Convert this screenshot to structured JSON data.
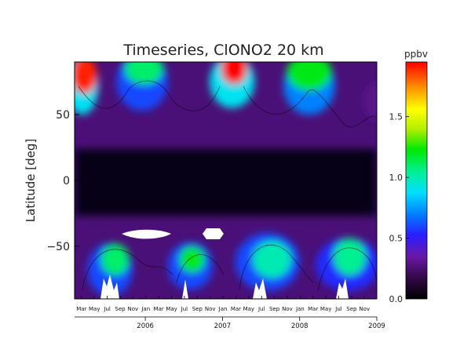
{
  "chart_data": {
    "type": "heatmap",
    "title": "Timeseries, ClONO2 20 km",
    "xlabel": "",
    "ylabel": "Latitude [deg]",
    "x_range": [
      "2005-02",
      "2009-01"
    ],
    "ylim": [
      -90,
      90
    ],
    "y_ticks": [
      {
        "value": 50,
        "label": "50"
      },
      {
        "value": 0,
        "label": "0"
      },
      {
        "value": -50,
        "label": "−50"
      }
    ],
    "month_ticks": [
      {
        "t": 1.08,
        "label": "Mar"
      },
      {
        "t": 3.08,
        "label": "May"
      },
      {
        "t": 5.08,
        "label": "Jul"
      },
      {
        "t": 7.08,
        "label": "Sep"
      },
      {
        "t": 9.08,
        "label": "Nov"
      },
      {
        "t": 11.08,
        "label": "Jan"
      },
      {
        "t": 13.08,
        "label": "Mar"
      },
      {
        "t": 15.08,
        "label": "May"
      },
      {
        "t": 17.08,
        "label": "Jul"
      },
      {
        "t": 19.08,
        "label": "Sep"
      },
      {
        "t": 21.08,
        "label": "Nov"
      },
      {
        "t": 23.08,
        "label": "Jan"
      },
      {
        "t": 25.08,
        "label": "Mar"
      },
      {
        "t": 27.08,
        "label": "May"
      },
      {
        "t": 29.08,
        "label": "Jul"
      },
      {
        "t": 31.08,
        "label": "Sep"
      },
      {
        "t": 33.08,
        "label": "Nov"
      },
      {
        "t": 35.08,
        "label": "Jan"
      },
      {
        "t": 37.08,
        "label": "Mar"
      },
      {
        "t": 39.08,
        "label": "May"
      },
      {
        "t": 41.08,
        "label": "Jul"
      },
      {
        "t": 43.08,
        "label": "Sep"
      },
      {
        "t": 45.08,
        "label": "Nov"
      }
    ],
    "year_ticks": [
      {
        "t": 11,
        "label": "2006"
      },
      {
        "t": 23,
        "label": "2007"
      },
      {
        "t": 35,
        "label": "2008"
      },
      {
        "t": 47,
        "label": "2009"
      }
    ],
    "colorbar": {
      "title": "ppbv",
      "range": [
        0,
        1.95
      ],
      "ticks": [
        {
          "value": 0.0,
          "label": "0.0"
        },
        {
          "value": 0.5,
          "label": "0.5"
        },
        {
          "value": 1.0,
          "label": "1.0"
        },
        {
          "value": 1.5,
          "label": "1.5"
        }
      ]
    },
    "features": [
      {
        "lat": 80,
        "t": 1.5,
        "dlat": 14,
        "dt": 2.0,
        "value": 1.9
      },
      {
        "lat": 72,
        "t": 1.2,
        "dlat": 22,
        "dt": 2.5,
        "value": 0.9
      },
      {
        "lat": 85,
        "t": 10.8,
        "dlat": 12,
        "dt": 3.0,
        "value": 1.1
      },
      {
        "lat": 75,
        "t": 10.5,
        "dlat": 22,
        "dt": 4.0,
        "value": 0.6
      },
      {
        "lat": 85,
        "t": 24.8,
        "dlat": 12,
        "dt": 2.0,
        "value": 1.95
      },
      {
        "lat": 75,
        "t": 24.5,
        "dlat": 20,
        "dt": 3.5,
        "value": 0.9
      },
      {
        "lat": 82,
        "t": 36.5,
        "dlat": 14,
        "dt": 3.5,
        "value": 1.2
      },
      {
        "lat": 72,
        "t": 36.5,
        "dlat": 22,
        "dt": 4.0,
        "value": 0.7
      },
      {
        "lat": 60,
        "t": 47.0,
        "dlat": 15,
        "dt": 2.0,
        "value": 0.3
      },
      {
        "lat": -60,
        "t": 6.3,
        "dlat": 12,
        "dt": 2.2,
        "value": 1.1
      },
      {
        "lat": -68,
        "t": 5.5,
        "dlat": 20,
        "dt": 3.5,
        "value": 0.6
      },
      {
        "lat": -60,
        "t": 18.3,
        "dlat": 10,
        "dt": 2.0,
        "value": 1.2
      },
      {
        "lat": -65,
        "t": 18.0,
        "dlat": 18,
        "dt": 3.5,
        "value": 0.6
      },
      {
        "lat": -60,
        "t": 30.7,
        "dlat": 14,
        "dt": 3.0,
        "value": 1.0
      },
      {
        "lat": -62,
        "t": 30.0,
        "dlat": 22,
        "dt": 5.0,
        "value": 0.6
      },
      {
        "lat": -58,
        "t": 42.8,
        "dlat": 14,
        "dt": 2.5,
        "value": 1.05
      },
      {
        "lat": -64,
        "t": 42.5,
        "dlat": 20,
        "dt": 5.0,
        "value": 0.55
      }
    ]
  }
}
